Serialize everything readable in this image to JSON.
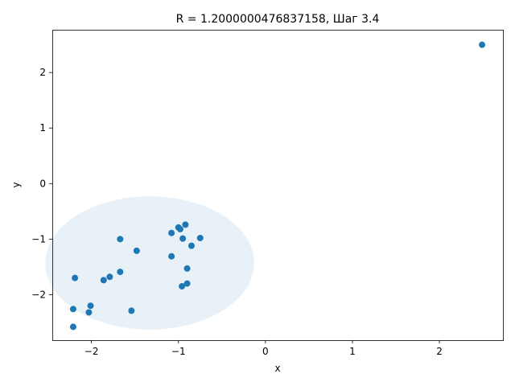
{
  "chart_data": {
    "type": "scatter",
    "title": "R = 1.2000000476837158, Шаг 3.4",
    "xlabel": "x",
    "ylabel": "y",
    "xlim": [
      -2.45,
      2.73
    ],
    "ylim": [
      -2.82,
      2.77
    ],
    "x_ticks": [
      -2,
      -1,
      0,
      1,
      2
    ],
    "y_ticks": [
      -2,
      -1,
      0,
      1,
      2
    ],
    "grid": false,
    "point_color": "#1f77b4",
    "circle": {
      "center": [
        -1.33,
        -1.43
      ],
      "radius": 1.2,
      "fill_color": "#1f77b4",
      "fill_opacity": 0.1
    },
    "points": [
      {
        "x": 2.49,
        "y": 2.5
      },
      {
        "x": -0.92,
        "y": -0.74
      },
      {
        "x": -1.0,
        "y": -0.79
      },
      {
        "x": -0.98,
        "y": -0.82
      },
      {
        "x": -1.08,
        "y": -0.89
      },
      {
        "x": -0.95,
        "y": -0.99
      },
      {
        "x": -0.75,
        "y": -0.98
      },
      {
        "x": -1.67,
        "y": -1.0
      },
      {
        "x": -0.85,
        "y": -1.12
      },
      {
        "x": -1.48,
        "y": -1.21
      },
      {
        "x": -1.08,
        "y": -1.31
      },
      {
        "x": -0.9,
        "y": -1.53
      },
      {
        "x": -1.67,
        "y": -1.59
      },
      {
        "x": -1.79,
        "y": -1.68
      },
      {
        "x": -2.19,
        "y": -1.7
      },
      {
        "x": -1.86,
        "y": -1.74
      },
      {
        "x": -0.9,
        "y": -1.8
      },
      {
        "x": -0.96,
        "y": -1.85
      },
      {
        "x": -2.01,
        "y": -2.2
      },
      {
        "x": -2.21,
        "y": -2.26
      },
      {
        "x": -1.54,
        "y": -2.29
      },
      {
        "x": -2.03,
        "y": -2.32
      },
      {
        "x": -2.21,
        "y": -2.58
      }
    ]
  }
}
